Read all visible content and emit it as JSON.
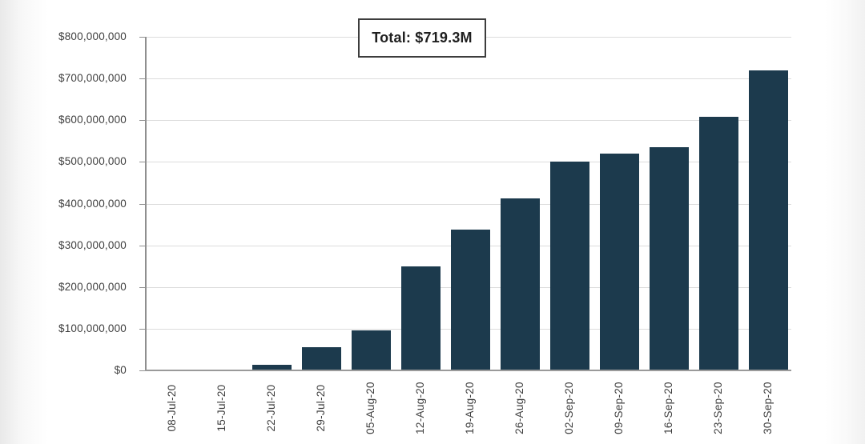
{
  "chart_data": {
    "type": "bar",
    "title": "Total: $719.3M",
    "categories": [
      "08-Jul-20",
      "15-Jul-20",
      "22-Jul-20",
      "29-Jul-20",
      "05-Aug-20",
      "12-Aug-20",
      "19-Aug-20",
      "26-Aug-20",
      "02-Sep-20",
      "09-Sep-20",
      "16-Sep-20",
      "23-Sep-20",
      "30-Sep-20"
    ],
    "values": [
      300000,
      2500000,
      14000000,
      56000000,
      96000000,
      250000000,
      337000000,
      412000000,
      500000000,
      520000000,
      535000000,
      609000000,
      719300000
    ],
    "xlabel": "",
    "ylabel": "",
    "ylim": [
      0,
      800000000
    ],
    "ytick_values": [
      0,
      100000000,
      200000000,
      300000000,
      400000000,
      500000000,
      600000000,
      700000000,
      800000000
    ],
    "ytick_labels": [
      "$0",
      "$100,000,000",
      "$200,000,000",
      "$300,000,000",
      "$400,000,000",
      "$500,000,000",
      "$600,000,000",
      "$700,000,000",
      "$800,000,000"
    ],
    "grid": true,
    "legend": "none",
    "colors": {
      "bar": "#1c3a4d",
      "grid": "#dcdcdc",
      "axis": "#8f8f8f",
      "label": "#3f3f3f",
      "title_text": "#1f1f1f",
      "title_border": "#3d3d3d",
      "background": "#ffffff"
    }
  }
}
